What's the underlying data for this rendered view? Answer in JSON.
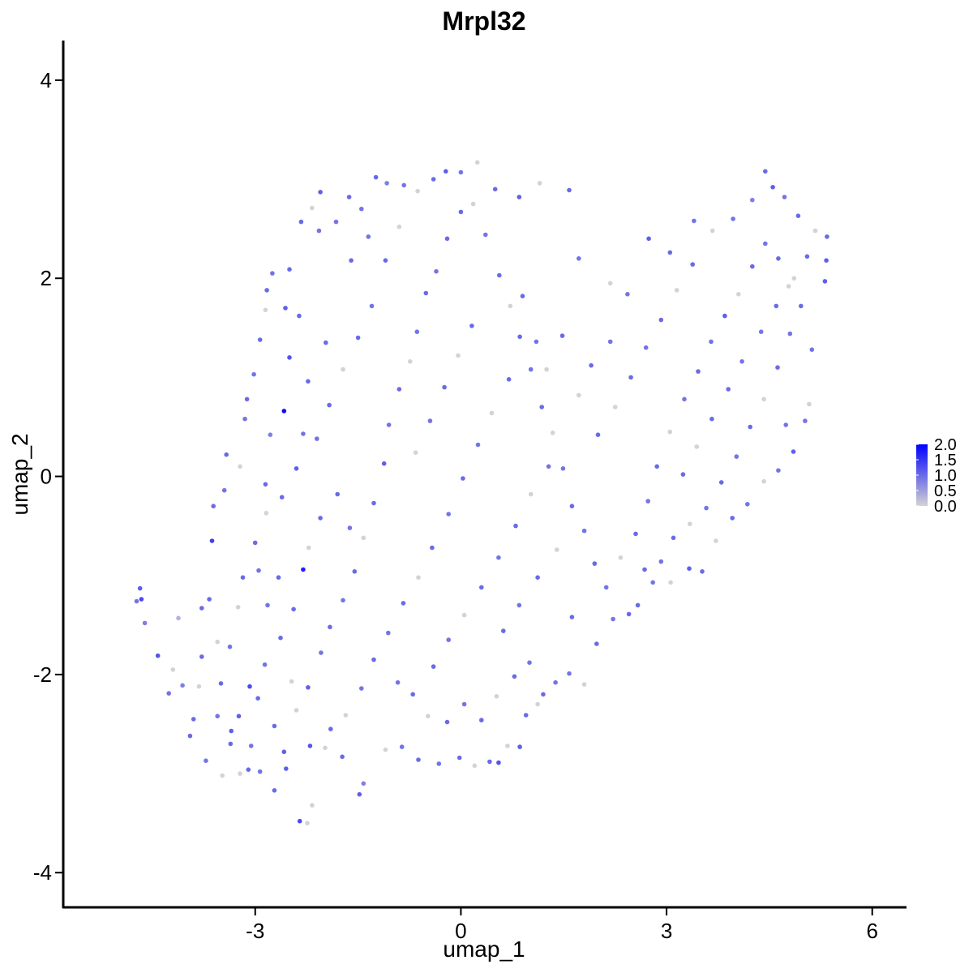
{
  "chart_data": {
    "type": "scatter",
    "title": "Mrpl32",
    "xlabel": "umap_1",
    "ylabel": "umap_2",
    "xlim": [
      -5.8,
      6.5
    ],
    "ylim": [
      -4.35,
      4.4
    ],
    "x_ticks": [
      -3,
      0,
      3,
      6
    ],
    "y_ticks": [
      -4,
      -2,
      0,
      2,
      4
    ],
    "x_tick_labels": [
      "-3",
      "0",
      "3",
      "6"
    ],
    "y_tick_labels": [
      "-4",
      "-2",
      "0",
      "2",
      "4"
    ],
    "grid": false,
    "legend": {
      "placement": "right",
      "type": "colorbar",
      "min": 0.0,
      "max": 2.0,
      "breaks": [
        0.0,
        0.5,
        1.0,
        1.5,
        2.0
      ],
      "labels": [
        "0.0",
        "0.5",
        "1.0",
        "1.5",
        "2.0"
      ],
      "low_color": "#d3d3d3",
      "high_color": "#0000ff"
    },
    "points": [
      [
        -4.73,
        -1.26,
        0.9
      ],
      [
        -4.68,
        -1.13,
        1.1
      ],
      [
        -4.66,
        -1.24,
        1.3
      ],
      [
        -4.61,
        -1.48,
        0.8
      ],
      [
        -4.42,
        -1.81,
        1.2
      ],
      [
        -4.26,
        -2.19,
        0.9
      ],
      [
        -4.12,
        -1.43,
        0.3
      ],
      [
        -3.95,
        -2.62,
        1.0
      ],
      [
        -3.78,
        -1.33,
        1.0
      ],
      [
        -3.63,
        -0.65,
        1.4
      ],
      [
        -3.55,
        -1.67,
        0.0
      ],
      [
        -3.35,
        -2.57,
        1.1
      ],
      [
        -3.22,
        -3.0,
        0.0
      ],
      [
        -3.08,
        -2.12,
        1.3
      ],
      [
        -2.95,
        -0.95,
        0.9
      ],
      [
        -2.85,
        -0.08,
        1.0
      ],
      [
        -2.78,
        0.42,
        0.8
      ],
      [
        -2.58,
        0.66,
        1.9
      ],
      [
        -2.44,
        -1.34,
        1.0
      ],
      [
        -2.3,
        -0.94,
        1.7
      ],
      [
        -2.2,
        -2.72,
        1.2
      ],
      [
        -2.17,
        -3.32,
        0.0
      ],
      [
        -2.24,
        -3.5,
        0.0
      ],
      [
        -2.35,
        -3.48,
        1.3
      ],
      [
        -2.55,
        -2.95,
        1.1
      ],
      [
        -1.97,
        1.35,
        1.0
      ],
      [
        -1.82,
        2.57,
        0.9
      ],
      [
        -1.63,
        2.82,
        1.0
      ],
      [
        -1.45,
        2.7,
        0.9
      ],
      [
        -1.24,
        3.02,
        1.0
      ],
      [
        -1.08,
        2.96,
        0.8
      ],
      [
        -0.83,
        2.94,
        0.9
      ],
      [
        -0.63,
        2.88,
        0.0
      ],
      [
        -0.4,
        3.0,
        1.0
      ],
      [
        -0.22,
        3.08,
        1.1
      ],
      [
        0.0,
        3.07,
        0.9
      ],
      [
        0.24,
        3.17,
        0.0
      ],
      [
        0.5,
        2.9,
        1.0
      ],
      [
        0.85,
        2.82,
        1.1
      ],
      [
        1.15,
        2.96,
        0.0
      ],
      [
        1.58,
        2.89,
        1.0
      ],
      [
        1.72,
        2.2,
        0.9
      ],
      [
        2.18,
        1.95,
        0.0
      ],
      [
        2.43,
        1.84,
        0.9
      ],
      [
        2.74,
        2.4,
        1.1
      ],
      [
        3.05,
        2.26,
        1.0
      ],
      [
        3.4,
        2.58,
        0.9
      ],
      [
        3.67,
        2.48,
        0.0
      ],
      [
        3.97,
        2.6,
        0.9
      ],
      [
        4.25,
        2.79,
        0.8
      ],
      [
        4.44,
        3.08,
        1.0
      ],
      [
        4.55,
        2.92,
        1.1
      ],
      [
        4.72,
        2.82,
        0.9
      ],
      [
        4.92,
        2.63,
        1.0
      ],
      [
        5.17,
        2.48,
        0.0
      ],
      [
        5.34,
        2.42,
        1.0
      ],
      [
        5.33,
        2.18,
        1.1
      ],
      [
        5.31,
        1.97,
        1.1
      ],
      [
        5.12,
        1.28,
        0.9
      ],
      [
        5.08,
        0.73,
        0.0
      ],
      [
        5.02,
        0.56,
        0.9
      ],
      [
        4.85,
        0.25,
        1.1
      ],
      [
        4.63,
        0.06,
        0.9
      ],
      [
        4.42,
        -0.05,
        0.0
      ],
      [
        4.18,
        -0.28,
        0.9
      ],
      [
        3.96,
        -0.42,
        1.0
      ],
      [
        3.72,
        -0.65,
        0.0
      ],
      [
        3.52,
        -0.96,
        1.0
      ],
      [
        3.33,
        -0.93,
        1.1
      ],
      [
        3.06,
        -1.07,
        0.0
      ],
      [
        2.8,
        -1.07,
        0.9
      ],
      [
        2.58,
        -1.3,
        1.0
      ],
      [
        2.45,
        -1.39,
        1.0
      ],
      [
        2.22,
        -1.44,
        0.9
      ],
      [
        1.98,
        -1.69,
        1.0
      ],
      [
        1.8,
        -2.1,
        0.0
      ],
      [
        1.58,
        -1.99,
        0.9
      ],
      [
        1.38,
        -2.08,
        0.9
      ],
      [
        1.12,
        -2.3,
        0.0
      ],
      [
        0.95,
        -2.41,
        1.0
      ],
      [
        0.86,
        -2.73,
        1.1
      ],
      [
        0.68,
        -2.72,
        0.0
      ],
      [
        0.55,
        -2.89,
        1.2
      ],
      [
        0.42,
        -2.88,
        1.0
      ],
      [
        0.2,
        -2.92,
        0.0
      ],
      [
        -0.02,
        -2.84,
        1.0
      ],
      [
        -0.32,
        -2.9,
        0.9
      ],
      [
        -0.62,
        -2.86,
        1.0
      ],
      [
        -0.86,
        -2.73,
        0.9
      ],
      [
        -1.1,
        -2.76,
        0.0
      ],
      [
        -1.42,
        -3.1,
        0.8
      ],
      [
        -1.48,
        -3.21,
        1.1
      ],
      [
        -1.73,
        -2.83,
        1.0
      ],
      [
        -1.98,
        -2.74,
        0.0
      ],
      [
        -2.72,
        -3.17,
        1.0
      ],
      [
        -2.93,
        -2.98,
        0.9
      ],
      [
        -3.1,
        -2.96,
        1.0
      ],
      [
        -3.48,
        -3.02,
        0.0
      ],
      [
        -3.72,
        -2.87,
        0.9
      ],
      [
        -3.9,
        -2.45,
        1.0
      ],
      [
        -4.06,
        -2.11,
        0.8
      ],
      [
        -4.2,
        -1.95,
        0.0
      ],
      [
        -3.67,
        -1.24,
        1.0
      ],
      [
        -3.61,
        -0.3,
        1.0
      ],
      [
        -3.45,
        -0.14,
        0.9
      ],
      [
        -3.42,
        0.22,
        1.0
      ],
      [
        -3.22,
        0.1,
        0.0
      ],
      [
        -3.15,
        0.58,
        0.9
      ],
      [
        -3.12,
        0.78,
        1.0
      ],
      [
        -3.02,
        1.03,
        0.9
      ],
      [
        -2.93,
        1.38,
        1.0
      ],
      [
        -2.85,
        1.68,
        0.0
      ],
      [
        -2.83,
        1.88,
        1.0
      ],
      [
        -2.75,
        2.05,
        0.9
      ],
      [
        -2.56,
        1.7,
        1.1
      ],
      [
        -2.5,
        2.09,
        1.0
      ],
      [
        -2.33,
        2.57,
        1.0
      ],
      [
        -2.17,
        2.71,
        0.0
      ],
      [
        -2.05,
        2.87,
        1.1
      ],
      [
        -2.07,
        2.48,
        0.9
      ],
      [
        -2.36,
        1.62,
        1.0
      ],
      [
        -2.5,
        1.2,
        1.2
      ],
      [
        -2.23,
        0.96,
        1.0
      ],
      [
        -2.3,
        0.43,
        0.9
      ],
      [
        -2.4,
        0.08,
        1.1
      ],
      [
        -2.61,
        -0.21,
        1.0
      ],
      [
        -2.84,
        -0.37,
        0.0
      ],
      [
        -3.0,
        -0.67,
        1.0
      ],
      [
        -3.18,
        -1.02,
        1.0
      ],
      [
        -3.25,
        -1.32,
        0.0
      ],
      [
        -3.37,
        -1.72,
        0.9
      ],
      [
        -3.5,
        -2.09,
        1.0
      ],
      [
        -3.24,
        -2.42,
        1.1
      ],
      [
        -2.96,
        -2.24,
        1.0
      ],
      [
        -2.86,
        -1.9,
        0.9
      ],
      [
        -2.63,
        -1.63,
        1.0
      ],
      [
        -2.47,
        -2.07,
        0.0
      ],
      [
        -2.23,
        -2.13,
        1.1
      ],
      [
        -2.04,
        -1.78,
        0.9
      ],
      [
        -1.91,
        -1.52,
        1.0
      ],
      [
        -1.72,
        -1.25,
        0.9
      ],
      [
        -1.55,
        -0.96,
        1.0
      ],
      [
        -1.42,
        -0.62,
        0.0
      ],
      [
        -1.27,
        -0.27,
        1.0
      ],
      [
        -1.12,
        0.13,
        1.1
      ],
      [
        -1.05,
        0.52,
        0.9
      ],
      [
        -0.9,
        0.88,
        1.0
      ],
      [
        -0.74,
        1.16,
        0.0
      ],
      [
        -0.64,
        1.46,
        0.9
      ],
      [
        -0.51,
        1.85,
        1.0
      ],
      [
        -0.36,
        2.07,
        0.9
      ],
      [
        -0.2,
        2.4,
        1.0
      ],
      [
        0.0,
        2.67,
        1.0
      ],
      [
        0.18,
        2.75,
        0.0
      ],
      [
        0.36,
        2.44,
        0.9
      ],
      [
        0.56,
        2.03,
        1.0
      ],
      [
        0.72,
        1.72,
        0.0
      ],
      [
        0.86,
        1.41,
        1.0
      ],
      [
        1.02,
        1.08,
        0.9
      ],
      [
        1.18,
        0.7,
        1.0
      ],
      [
        1.34,
        0.44,
        0.0
      ],
      [
        1.49,
        0.08,
        0.9
      ],
      [
        1.62,
        -0.3,
        1.0
      ],
      [
        1.8,
        -0.55,
        0.9
      ],
      [
        1.95,
        -0.88,
        1.0
      ],
      [
        2.12,
        -1.12,
        0.9
      ],
      [
        2.33,
        -0.82,
        0.0
      ],
      [
        2.55,
        -0.58,
        1.0
      ],
      [
        2.73,
        -0.25,
        0.9
      ],
      [
        2.86,
        0.1,
        1.0
      ],
      [
        3.05,
        0.45,
        0.0
      ],
      [
        3.26,
        0.78,
        0.9
      ],
      [
        3.46,
        1.06,
        1.0
      ],
      [
        3.65,
        1.36,
        0.9
      ],
      [
        3.85,
        1.62,
        1.1
      ],
      [
        4.05,
        1.84,
        0.0
      ],
      [
        4.25,
        2.12,
        1.0
      ],
      [
        4.44,
        2.35,
        0.9
      ],
      [
        4.63,
        2.2,
        1.0
      ],
      [
        4.78,
        1.92,
        0.0
      ],
      [
        4.96,
        1.72,
        1.0
      ],
      [
        4.8,
        1.44,
        0.9
      ],
      [
        4.62,
        1.1,
        1.0
      ],
      [
        4.42,
        0.78,
        0.0
      ],
      [
        4.22,
        0.5,
        1.0
      ],
      [
        4.02,
        0.2,
        0.9
      ],
      [
        3.8,
        -0.06,
        1.0
      ],
      [
        3.58,
        -0.32,
        0.9
      ],
      [
        3.34,
        -0.48,
        0.0
      ],
      [
        3.1,
        -0.62,
        1.0
      ],
      [
        2.92,
        -0.86,
        0.9
      ],
      [
        2.68,
        -0.94,
        1.0
      ],
      [
        1.48,
        1.42,
        1.0
      ],
      [
        1.25,
        1.08,
        0.0
      ],
      [
        1.1,
        1.36,
        0.9
      ],
      [
        0.9,
        1.82,
        1.0
      ],
      [
        0.7,
        0.98,
        1.0
      ],
      [
        0.45,
        0.64,
        0.0
      ],
      [
        0.25,
        0.32,
        0.9
      ],
      [
        0.03,
        -0.02,
        1.0
      ],
      [
        -0.18,
        -0.38,
        0.9
      ],
      [
        -0.42,
        -0.72,
        1.0
      ],
      [
        -0.62,
        -1.02,
        0.0
      ],
      [
        -0.84,
        -1.28,
        1.0
      ],
      [
        -1.06,
        -1.58,
        0.9
      ],
      [
        -1.27,
        -1.85,
        1.0
      ],
      [
        -1.45,
        -2.14,
        0.9
      ],
      [
        -1.68,
        -2.41,
        0.0
      ],
      [
        -1.9,
        -2.55,
        1.0
      ],
      [
        -0.4,
        -1.92,
        1.0
      ],
      [
        -0.18,
        -1.65,
        0.9
      ],
      [
        0.05,
        -1.4,
        0.0
      ],
      [
        0.3,
        -1.12,
        1.0
      ],
      [
        0.55,
        -0.82,
        0.9
      ],
      [
        0.8,
        -0.5,
        1.0
      ],
      [
        1.02,
        -0.18,
        0.0
      ],
      [
        1.28,
        0.1,
        0.9
      ],
      [
        0.62,
        -1.56,
        1.0
      ],
      [
        0.85,
        -1.3,
        0.9
      ],
      [
        1.12,
        -1.02,
        1.0
      ],
      [
        1.4,
        -0.74,
        0.0
      ],
      [
        1.62,
        -1.42,
        1.0
      ],
      [
        -0.66,
        0.24,
        0.0
      ],
      [
        -0.45,
        0.56,
        0.9
      ],
      [
        -0.24,
        0.9,
        1.0
      ],
      [
        -0.04,
        1.22,
        0.0
      ],
      [
        0.16,
        1.52,
        1.0
      ],
      [
        -1.3,
        1.72,
        0.9
      ],
      [
        -1.5,
        1.4,
        1.0
      ],
      [
        -1.72,
        1.08,
        0.0
      ],
      [
        -1.92,
        0.72,
        1.0
      ],
      [
        -2.1,
        0.38,
        0.9
      ],
      [
        -1.6,
        2.18,
        1.0
      ],
      [
        -1.35,
        2.42,
        0.9
      ],
      [
        -1.1,
        2.18,
        1.0
      ],
      [
        -0.9,
        2.52,
        0.0
      ],
      [
        -1.8,
        -0.18,
        1.0
      ],
      [
        -1.62,
        -0.52,
        0.9
      ],
      [
        -2.05,
        -0.42,
        1.0
      ],
      [
        -2.22,
        -0.72,
        0.0
      ],
      [
        -2.66,
        -1.02,
        1.0
      ],
      [
        -2.82,
        -1.3,
        0.9
      ],
      [
        -3.78,
        -1.82,
        1.0
      ],
      [
        -3.55,
        -2.42,
        0.9
      ],
      [
        -3.82,
        -2.12,
        0.0
      ],
      [
        -3.36,
        -2.7,
        1.0
      ],
      [
        -3.06,
        -2.72,
        0.9
      ],
      [
        -2.72,
        -2.52,
        1.0
      ],
      [
        -2.4,
        -2.36,
        0.0
      ],
      [
        -2.58,
        -2.78,
        1.1
      ],
      [
        1.2,
        -2.2,
        1.0
      ],
      [
        1.0,
        -1.88,
        0.9
      ],
      [
        0.78,
        -2.02,
        1.0
      ],
      [
        0.52,
        -2.22,
        0.0
      ],
      [
        0.3,
        -2.46,
        1.0
      ],
      [
        0.05,
        -2.3,
        0.9
      ],
      [
        -0.2,
        -2.48,
        1.0
      ],
      [
        -0.48,
        -2.42,
        0.0
      ],
      [
        -0.7,
        -2.2,
        1.0
      ],
      [
        -0.92,
        -2.08,
        0.9
      ],
      [
        2.0,
        0.42,
        1.0
      ],
      [
        2.25,
        0.7,
        0.0
      ],
      [
        2.48,
        1.0,
        1.0
      ],
      [
        2.7,
        1.3,
        0.9
      ],
      [
        2.92,
        1.58,
        1.0
      ],
      [
        3.15,
        1.88,
        0.0
      ],
      [
        3.38,
        2.14,
        1.0
      ],
      [
        2.18,
        1.36,
        0.9
      ],
      [
        1.9,
        1.12,
        1.0
      ],
      [
        1.72,
        0.82,
        0.0
      ],
      [
        3.9,
        0.88,
        1.0
      ],
      [
        4.1,
        1.16,
        0.9
      ],
      [
        3.66,
        0.58,
        1.0
      ],
      [
        3.44,
        0.3,
        0.0
      ],
      [
        3.24,
        0.02,
        1.0
      ],
      [
        4.38,
        1.46,
        0.9
      ],
      [
        4.6,
        1.72,
        1.0
      ],
      [
        4.86,
        2.0,
        0.0
      ],
      [
        5.05,
        2.22,
        1.0
      ],
      [
        4.74,
        0.52,
        0.9
      ]
    ]
  }
}
